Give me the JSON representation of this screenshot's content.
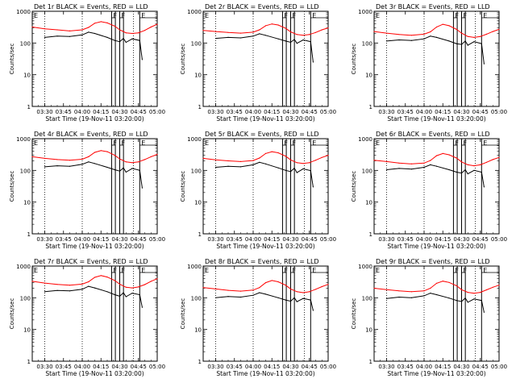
{
  "axes": {
    "ylabel": "Counts/sec",
    "xlabel": "Start Time (19-Nov-11 03:20:00)",
    "yticks": [
      "1",
      "10",
      "100",
      "1000"
    ],
    "xticks": [
      "03:30",
      "03:45",
      "04:00",
      "04:15",
      "04:30",
      "04:45",
      "05:00"
    ],
    "x_range_min": [
      0,
      100
    ],
    "y_range": [
      1,
      1000
    ],
    "y_scale": "log",
    "markers": [
      "F",
      "F",
      "E"
    ],
    "dotted_vlines_min": [
      10,
      40,
      70,
      81
    ]
  },
  "colors": {
    "events": "#000000",
    "lld": "#ff0000"
  },
  "chart_data": [
    {
      "type": "line",
      "title": "Det 1r BLACK = Events, RED = LLD",
      "series": [
        {
          "name": "BLACK = Events",
          "x": [
            10,
            20,
            30,
            40,
            45,
            50,
            60,
            66,
            70,
            73,
            75,
            80,
            86,
            88
          ],
          "values": [
            150,
            165,
            160,
            180,
            220,
            200,
            150,
            120,
            110,
            140,
            105,
            135,
            120,
            30
          ]
        },
        {
          "name": "RED = LLD",
          "x": [
            0,
            10,
            20,
            30,
            40,
            45,
            50,
            55,
            60,
            66,
            70,
            75,
            80,
            85,
            90,
            95,
            100
          ],
          "values": [
            320,
            280,
            260,
            240,
            260,
            310,
            420,
            470,
            430,
            340,
            260,
            210,
            200,
            210,
            250,
            320,
            390
          ]
        }
      ]
    },
    {
      "type": "line",
      "title": "Det 2r BLACK = Events, RED = LLD",
      "series": [
        {
          "name": "BLACK = Events",
          "x": [
            10,
            20,
            30,
            40,
            45,
            50,
            60,
            66,
            70,
            73,
            75,
            80,
            86,
            88
          ],
          "values": [
            140,
            150,
            145,
            165,
            195,
            175,
            135,
            115,
            105,
            130,
            98,
            125,
            110,
            25
          ]
        },
        {
          "name": "RED = LLD",
          "x": [
            0,
            10,
            20,
            30,
            40,
            45,
            50,
            55,
            60,
            66,
            70,
            75,
            80,
            85,
            90,
            95,
            100
          ],
          "values": [
            250,
            230,
            215,
            205,
            220,
            260,
            350,
            400,
            370,
            290,
            225,
            185,
            175,
            185,
            215,
            260,
            300
          ]
        }
      ]
    },
    {
      "type": "line",
      "title": "Det 3r BLACK = Events, RED = LLD",
      "series": [
        {
          "name": "BLACK = Events",
          "x": [
            10,
            20,
            30,
            40,
            45,
            50,
            60,
            66,
            70,
            73,
            75,
            80,
            86,
            88
          ],
          "values": [
            115,
            125,
            120,
            135,
            165,
            150,
            115,
            95,
            90,
            115,
            85,
            110,
            95,
            22
          ]
        },
        {
          "name": "RED = LLD",
          "x": [
            0,
            10,
            20,
            30,
            40,
            45,
            50,
            55,
            60,
            66,
            70,
            75,
            80,
            85,
            90,
            95,
            100
          ],
          "values": [
            230,
            205,
            185,
            175,
            190,
            225,
            320,
            390,
            350,
            270,
            205,
            160,
            150,
            160,
            190,
            230,
            270
          ]
        }
      ]
    },
    {
      "type": "line",
      "title": "Det 4r BLACK = Events, RED = LLD",
      "series": [
        {
          "name": "BLACK = Events",
          "x": [
            10,
            20,
            30,
            40,
            45,
            50,
            60,
            66,
            70,
            73,
            75,
            80,
            86,
            88
          ],
          "values": [
            130,
            140,
            135,
            155,
            185,
            165,
            125,
            105,
            95,
            120,
            88,
            115,
            100,
            28
          ]
        },
        {
          "name": "RED = LLD",
          "x": [
            0,
            10,
            20,
            30,
            40,
            45,
            50,
            55,
            60,
            66,
            70,
            75,
            80,
            85,
            90,
            95,
            100
          ],
          "values": [
            270,
            240,
            220,
            210,
            225,
            270,
            370,
            420,
            390,
            300,
            230,
            185,
            175,
            185,
            220,
            270,
            320
          ]
        }
      ]
    },
    {
      "type": "line",
      "title": "Det 5r BLACK = Events, RED = LLD",
      "series": [
        {
          "name": "BLACK = Events",
          "x": [
            10,
            20,
            30,
            40,
            45,
            50,
            60,
            66,
            70,
            73,
            75,
            80,
            86,
            88
          ],
          "values": [
            125,
            135,
            130,
            150,
            180,
            160,
            120,
            100,
            92,
            118,
            85,
            112,
            98,
            30
          ]
        },
        {
          "name": "RED = LLD",
          "x": [
            0,
            10,
            20,
            30,
            40,
            45,
            50,
            55,
            60,
            66,
            70,
            75,
            80,
            85,
            90,
            95,
            100
          ],
          "values": [
            240,
            215,
            200,
            190,
            205,
            245,
            340,
            390,
            360,
            280,
            215,
            175,
            165,
            175,
            210,
            255,
            300
          ]
        }
      ]
    },
    {
      "type": "line",
      "title": "Det 6r BLACK = Events, RED = LLD",
      "series": [
        {
          "name": "BLACK = Events",
          "x": [
            10,
            20,
            30,
            40,
            45,
            50,
            60,
            66,
            70,
            73,
            75,
            80,
            86,
            88
          ],
          "values": [
            105,
            115,
            110,
            125,
            150,
            135,
            105,
            88,
            82,
            105,
            78,
            100,
            88,
            30
          ]
        },
        {
          "name": "RED = LLD",
          "x": [
            0,
            10,
            20,
            30,
            40,
            45,
            50,
            55,
            60,
            66,
            70,
            75,
            80,
            85,
            90,
            95,
            100
          ],
          "values": [
            210,
            190,
            170,
            160,
            170,
            205,
            290,
            340,
            310,
            245,
            185,
            150,
            140,
            150,
            180,
            220,
            255
          ]
        }
      ]
    },
    {
      "type": "line",
      "title": "Det 7r BLACK = Events, RED = LLD",
      "series": [
        {
          "name": "BLACK = Events",
          "x": [
            10,
            20,
            30,
            40,
            45,
            50,
            60,
            66,
            70,
            73,
            75,
            80,
            86,
            88
          ],
          "values": [
            155,
            170,
            165,
            185,
            230,
            205,
            155,
            125,
            112,
            145,
            108,
            140,
            125,
            50
          ]
        },
        {
          "name": "RED = LLD",
          "x": [
            0,
            10,
            20,
            30,
            40,
            45,
            50,
            55,
            60,
            66,
            70,
            75,
            80,
            85,
            90,
            95,
            100
          ],
          "values": [
            330,
            290,
            265,
            250,
            270,
            320,
            440,
            500,
            450,
            350,
            270,
            215,
            205,
            220,
            260,
            330,
            400
          ]
        }
      ]
    },
    {
      "type": "line",
      "title": "Det 8r BLACK = Events, RED = LLD",
      "series": [
        {
          "name": "BLACK = Events",
          "x": [
            10,
            20,
            30,
            40,
            45,
            50,
            60,
            66,
            70,
            73,
            75,
            80,
            86,
            88
          ],
          "values": [
            100,
            110,
            105,
            120,
            145,
            130,
            100,
            85,
            78,
            100,
            75,
            95,
            85,
            40
          ]
        },
        {
          "name": "RED = LLD",
          "x": [
            0,
            10,
            20,
            30,
            40,
            45,
            50,
            55,
            60,
            66,
            70,
            75,
            80,
            85,
            90,
            95,
            100
          ],
          "values": [
            210,
            190,
            172,
            162,
            175,
            210,
            300,
            350,
            320,
            250,
            190,
            155,
            145,
            155,
            185,
            225,
            265
          ]
        }
      ]
    },
    {
      "type": "line",
      "title": "Det 9r BLACK = Events, RED = LLD",
      "series": [
        {
          "name": "BLACK = Events",
          "x": [
            10,
            20,
            30,
            40,
            45,
            50,
            60,
            66,
            70,
            73,
            75,
            80,
            86,
            88
          ],
          "values": [
            95,
            105,
            100,
            115,
            140,
            125,
            98,
            82,
            76,
            98,
            72,
            92,
            82,
            35
          ]
        },
        {
          "name": "RED = LLD",
          "x": [
            0,
            10,
            20,
            30,
            40,
            45,
            50,
            55,
            60,
            66,
            70,
            75,
            80,
            85,
            90,
            95,
            100
          ],
          "values": [
            200,
            180,
            165,
            155,
            165,
            200,
            285,
            335,
            305,
            240,
            180,
            148,
            138,
            148,
            178,
            215,
            250
          ]
        }
      ]
    }
  ]
}
